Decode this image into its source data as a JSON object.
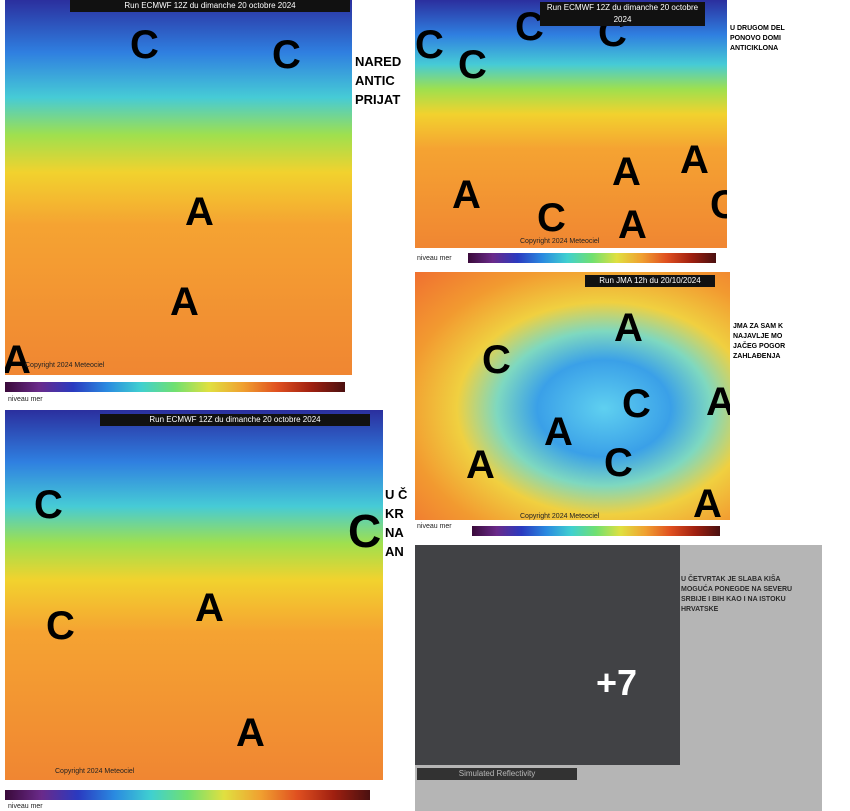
{
  "tiles": [
    {
      "title": "Run ECMWF 12Z du dimanche 20 octobre 2024",
      "letters": [
        "C",
        "C",
        "A",
        "A",
        "A"
      ],
      "legend": "niveau mer",
      "copyright": "Copyright 2024 Meteociel",
      "side_text": [
        "NARED",
        "ANTIC",
        "PRIJAT"
      ]
    },
    {
      "title": "Run ECMWF 12Z du dimanche 20 octobre 2024",
      "letters": [
        "C",
        "C",
        "C",
        "C",
        "A",
        "C",
        "A",
        "A",
        "A",
        "C"
      ],
      "legend": "niveau mer",
      "copyright": "Copyright 2024 Meteociel",
      "side_text": [
        "U DRUGOM DEL",
        "PONOVO DOMI",
        "ANTICIKLONA"
      ]
    },
    {
      "title": "Run JMA 12h du 20/10/2024",
      "letters": [
        "C",
        "A",
        "C",
        "A",
        "A",
        "C",
        "A",
        "A"
      ],
      "legend": "niveau mer",
      "copyright": "Copyright 2024 Meteociel",
      "side_text": [
        "JMA ZA SAM K",
        "NAJAVLJE MO",
        "JAČEG POGOR",
        "ZAHLAĐENJA"
      ]
    },
    {
      "title": "Run ECMWF 12Z du dimanche 20 octobre 2024",
      "letters": [
        "C",
        "C",
        "A",
        "A",
        "C"
      ],
      "legend": "niveau mer",
      "copyright": "Copyright 2024 Meteociel",
      "side_text": [
        "U Č",
        "KR",
        "NA",
        "AN"
      ]
    },
    {
      "title": "Simulated Reflectivity",
      "letters": [],
      "legend": "",
      "copyright": "",
      "side_text": [
        "U ČETVRTAK JE SLABA KIŠA",
        "MOGUĆA PONEGDE NA SEVERU",
        "SRBIJE I BIH KAO I NA ISTOKU",
        "HRVATSKE"
      ]
    }
  ],
  "more_count": "+7"
}
